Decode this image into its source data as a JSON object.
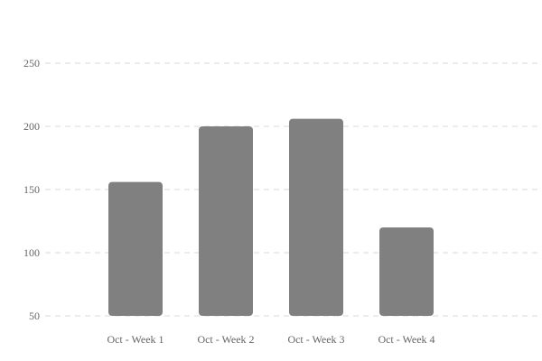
{
  "chart_data": {
    "type": "bar",
    "categories": [
      "Oct - Week 1",
      "Oct - Week 2",
      "Oct - Week 3",
      "Oct - Week 4"
    ],
    "values": [
      156,
      200,
      206,
      120
    ],
    "ylim": [
      50,
      250
    ],
    "yticks": [
      50,
      100,
      150,
      200,
      250
    ],
    "grid": true,
    "colors": {
      "bar": "#808080",
      "grid": "#e6e6e6",
      "text": "#666666"
    }
  }
}
